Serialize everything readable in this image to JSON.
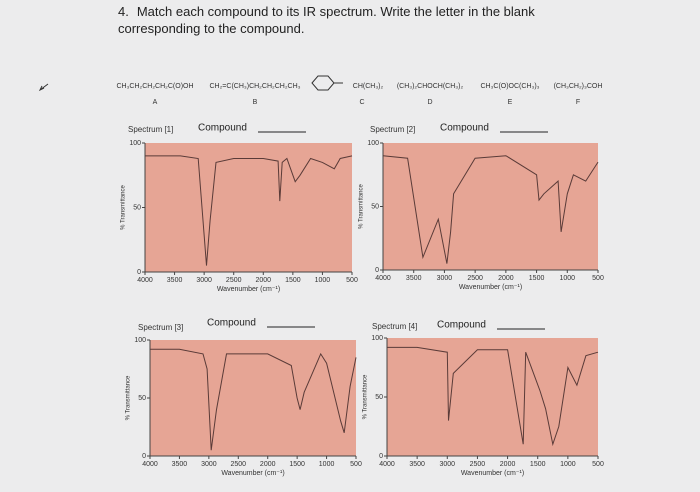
{
  "question": {
    "number": "4.",
    "text": "Match each compound to its IR spectrum. Write the letter in the blank corresponding to the compound."
  },
  "compounds": [
    {
      "formula": "CH₃CH₂CH₂CH₂C(O)OH",
      "letter": "A"
    },
    {
      "formula": "CH₂=C(CH₃)CH₂CH₂CH₂CH₃",
      "letter": "B"
    },
    {
      "formula": "CH(CH₃)₂",
      "letter": "C"
    },
    {
      "formula": "(CH₃)₂CHOCH(CH₃)₂",
      "letter": "D"
    },
    {
      "formula": "CH₃C(O)OC(CH₃)₃",
      "letter": "E"
    },
    {
      "formula": "(CH₃CH₂)₃COH",
      "letter": "F"
    }
  ],
  "spectra": [
    {
      "label": "Spectrum [1]",
      "compound_label": "Compound",
      "x_label": "Wavenumber (cm⁻¹)",
      "y_label": "% Transmittance",
      "xlim": [
        4000,
        500
      ],
      "ylim": [
        0,
        100
      ],
      "xticks": [
        4000,
        3500,
        3000,
        2500,
        2000,
        1500,
        1000,
        500
      ],
      "yticks": [
        0,
        50,
        100
      ],
      "x": [
        4000,
        3400,
        3100,
        2960,
        2900,
        2800,
        2500,
        2000,
        1750,
        1720,
        1680,
        1600,
        1460,
        1380,
        1200,
        1000,
        800,
        700,
        500
      ],
      "values": [
        90,
        90,
        88,
        5,
        40,
        85,
        88,
        88,
        86,
        55,
        85,
        88,
        70,
        75,
        88,
        85,
        80,
        88,
        90
      ]
    },
    {
      "label": "Spectrum [2]",
      "compound_label": "Compound",
      "x_label": "Wavenumber (cm⁻¹)",
      "y_label": "% Transmittance",
      "xlim": [
        4000,
        500
      ],
      "ylim": [
        0,
        100
      ],
      "xticks": [
        4000,
        3500,
        3000,
        2500,
        2000,
        1500,
        1000,
        500
      ],
      "yticks": [
        0,
        50,
        100
      ],
      "x": [
        4000,
        3600,
        3350,
        3100,
        2960,
        2900,
        2850,
        2500,
        2000,
        1500,
        1460,
        1380,
        1150,
        1100,
        1000,
        900,
        700,
        500
      ],
      "values": [
        90,
        88,
        10,
        40,
        5,
        30,
        60,
        88,
        90,
        75,
        55,
        60,
        70,
        30,
        60,
        75,
        70,
        85
      ]
    },
    {
      "label": "Spectrum [3]",
      "compound_label": "Compound",
      "x_label": "Wavenumber (cm⁻¹)",
      "y_label": "% Transmittance",
      "xlim": [
        4000,
        500
      ],
      "ylim": [
        0,
        100
      ],
      "xticks": [
        4000,
        3500,
        3000,
        2500,
        2000,
        1500,
        1000,
        500
      ],
      "yticks": [
        0,
        50,
        100
      ],
      "x": [
        4000,
        3500,
        3100,
        3030,
        2960,
        2870,
        2700,
        2000,
        1600,
        1500,
        1450,
        1380,
        1100,
        1000,
        760,
        700,
        600,
        500
      ],
      "values": [
        92,
        92,
        88,
        75,
        5,
        40,
        88,
        88,
        78,
        50,
        40,
        55,
        88,
        80,
        30,
        20,
        60,
        85
      ]
    },
    {
      "label": "Spectrum [4]",
      "compound_label": "Compound",
      "x_label": "Wavenumber (cm⁻¹)",
      "y_label": "% Transmittance",
      "xlim": [
        4000,
        500
      ],
      "ylim": [
        0,
        100
      ],
      "xticks": [
        4000,
        3500,
        3000,
        2500,
        2000,
        1500,
        1000,
        500
      ],
      "yticks": [
        0,
        50,
        100
      ],
      "x": [
        4000,
        3500,
        3000,
        2980,
        2900,
        2500,
        2000,
        1740,
        1700,
        1460,
        1370,
        1250,
        1150,
        1000,
        850,
        700,
        500
      ],
      "values": [
        92,
        92,
        88,
        30,
        70,
        90,
        90,
        10,
        88,
        55,
        40,
        10,
        25,
        75,
        60,
        85,
        88
      ]
    }
  ]
}
